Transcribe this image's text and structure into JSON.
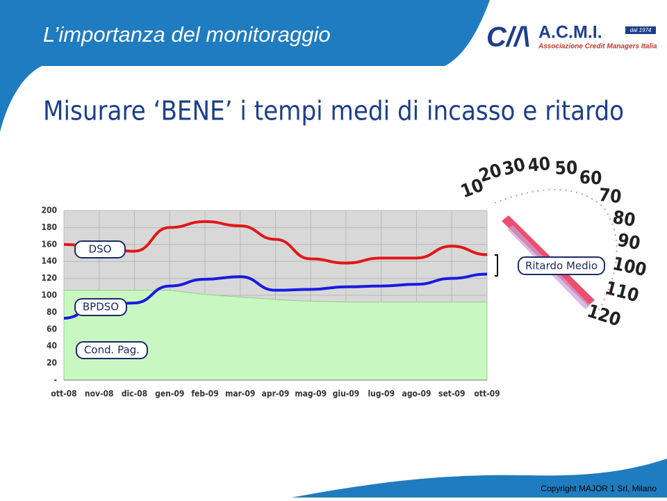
{
  "header": {
    "title": "L’importanza del monitoraggio",
    "subtitle": "Misurare ‘BENE’ i tempi medi di incasso e ritardo"
  },
  "logo": {
    "name": "A.C.M.I.",
    "tagline": "Associazione Credit Managers Italia",
    "since": "dal 1974"
  },
  "chart_data": {
    "type": "line",
    "categories": [
      "ott-08",
      "nov-08",
      "dic-08",
      "gen-09",
      "feb-09",
      "mar-09",
      "apr-09",
      "mag-09",
      "giu-09",
      "lug-09",
      "ago-09",
      "set-09",
      "ott-09"
    ],
    "series": [
      {
        "name": "DSO",
        "color": "#e01818",
        "values": [
          160,
          157,
          152,
          180,
          187,
          182,
          166,
          143,
          138,
          144,
          144,
          158,
          148
        ]
      },
      {
        "name": "BPDSO",
        "color": "#1a1ae0",
        "values": [
          73,
          88,
          91,
          111,
          119,
          122,
          106,
          107,
          110,
          111,
          113,
          120,
          125
        ]
      },
      {
        "name": "Cond. Pag.",
        "color": "#c9f7c1",
        "fill": true,
        "values": [
          106,
          106,
          106,
          106,
          101,
          98,
          95,
          93,
          92,
          92,
          92,
          92,
          92
        ]
      }
    ],
    "ylim": [
      0,
      200
    ],
    "yticks": [
      {
        "value": 0,
        "label": "-"
      },
      20,
      40,
      60,
      80,
      100,
      120,
      140,
      160,
      180,
      200
    ],
    "grid": true
  },
  "gauge": {
    "scale": [
      10,
      20,
      30,
      40,
      50,
      60,
      70,
      80,
      90,
      100,
      110,
      120
    ],
    "label": "Ritardo Medio"
  },
  "footer": {
    "copyright": "Copyright  MAJOR 1 Srl, Milano"
  }
}
